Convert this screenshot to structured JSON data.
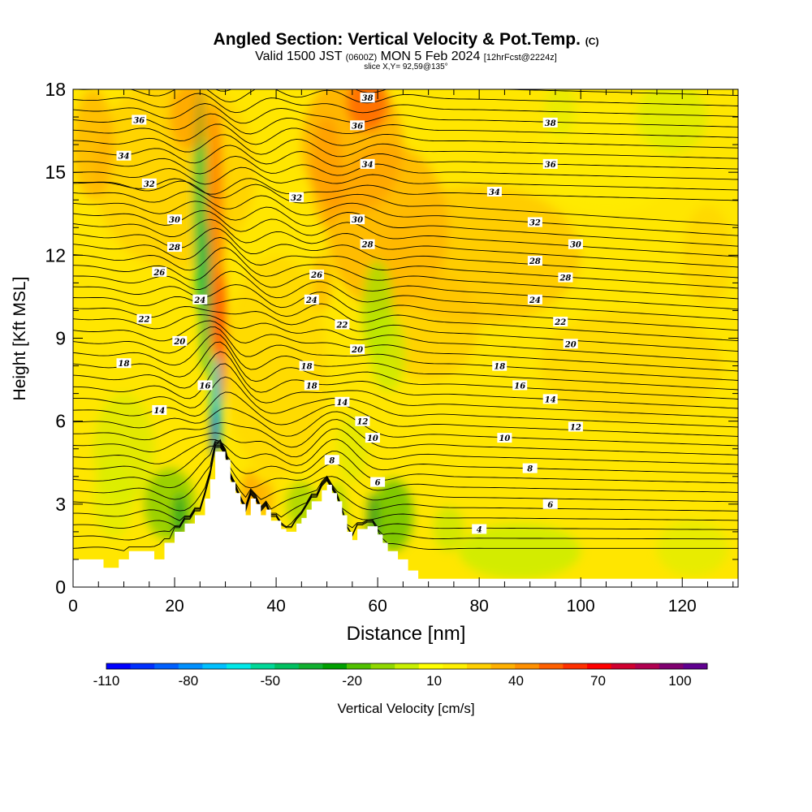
{
  "chart_data": {
    "type": "heatmap",
    "title": "Angled Section: Vertical Velocity & Pot.Temp.",
    "title_unit": "(C)",
    "subtitle_time": "Valid 1500 JST",
    "subtitle_zulu": "(0600Z)",
    "subtitle_date": "MON 5 Feb 2024",
    "subtitle_fcst": "[12hrFcst@2224z]",
    "slice": "slice X,Y= 92,59@135°",
    "xlabel": "Distance [nm]",
    "ylabel": "Height [Kft MSL]",
    "xlim": [
      0,
      131
    ],
    "ylim": [
      0,
      18
    ],
    "x_ticks": [
      "0",
      "20",
      "40",
      "60",
      "80",
      "100",
      "120"
    ],
    "y_ticks": [
      "0",
      "3",
      "6",
      "9",
      "12",
      "15",
      "18"
    ],
    "colorbar": {
      "label": "Vertical Velocity [cm/s]",
      "range": [
        -110,
        110
      ],
      "tick_labels": [
        "-110",
        "-80",
        "-50",
        "-20",
        "10",
        "40",
        "70",
        "100"
      ],
      "colors": [
        "#0000ff",
        "#0030ff",
        "#0060ff",
        "#0090ff",
        "#00c0ff",
        "#00e8e8",
        "#00d898",
        "#00c060",
        "#10b030",
        "#00a000",
        "#50c000",
        "#90d800",
        "#c8f000",
        "#ffff00",
        "#fff000",
        "#ffd000",
        "#ffb000",
        "#ff9000",
        "#ff6000",
        "#ff3000",
        "#ff0000",
        "#d00030",
        "#b00050",
        "#800070",
        "#600090"
      ]
    },
    "terrain_max_kft": 4.9,
    "contour_labels": [
      {
        "v": "36",
        "x": 13,
        "y": 16.9
      },
      {
        "v": "34",
        "x": 10,
        "y": 15.6
      },
      {
        "v": "32",
        "x": 15,
        "y": 14.6
      },
      {
        "v": "30",
        "x": 20,
        "y": 13.3
      },
      {
        "v": "28",
        "x": 20,
        "y": 12.3
      },
      {
        "v": "26",
        "x": 17,
        "y": 11.4
      },
      {
        "v": "24",
        "x": 25,
        "y": 10.4
      },
      {
        "v": "22",
        "x": 14,
        "y": 9.7
      },
      {
        "v": "20",
        "x": 21,
        "y": 8.9
      },
      {
        "v": "18",
        "x": 10,
        "y": 8.1
      },
      {
        "v": "16",
        "x": 26,
        "y": 7.3
      },
      {
        "v": "14",
        "x": 17,
        "y": 6.4
      },
      {
        "v": "38",
        "x": 58,
        "y": 17.7
      },
      {
        "v": "36",
        "x": 56,
        "y": 16.7
      },
      {
        "v": "34",
        "x": 58,
        "y": 15.3
      },
      {
        "v": "32",
        "x": 44,
        "y": 14.1
      },
      {
        "v": "30",
        "x": 56,
        "y": 13.3
      },
      {
        "v": "28",
        "x": 58,
        "y": 12.4
      },
      {
        "v": "26",
        "x": 48,
        "y": 11.3
      },
      {
        "v": "24",
        "x": 47,
        "y": 10.4
      },
      {
        "v": "22",
        "x": 53,
        "y": 9.5
      },
      {
        "v": "20",
        "x": 56,
        "y": 8.6
      },
      {
        "v": "18",
        "x": 46,
        "y": 8.0
      },
      {
        "v": "18",
        "x": 47,
        "y": 7.3
      },
      {
        "v": "14",
        "x": 53,
        "y": 6.7
      },
      {
        "v": "12",
        "x": 57,
        "y": 6.0
      },
      {
        "v": "10",
        "x": 59,
        "y": 5.4
      },
      {
        "v": "8",
        "x": 51,
        "y": 4.6
      },
      {
        "v": "6",
        "x": 60,
        "y": 3.8
      },
      {
        "v": "4",
        "x": 80,
        "y": 2.1
      },
      {
        "v": "38",
        "x": 94,
        "y": 16.8
      },
      {
        "v": "36",
        "x": 94,
        "y": 15.3
      },
      {
        "v": "34",
        "x": 83,
        "y": 14.3
      },
      {
        "v": "32",
        "x": 91,
        "y": 13.2
      },
      {
        "v": "30",
        "x": 99,
        "y": 12.4
      },
      {
        "v": "28",
        "x": 91,
        "y": 11.8
      },
      {
        "v": "28",
        "x": 97,
        "y": 11.2
      },
      {
        "v": "24",
        "x": 91,
        "y": 10.4
      },
      {
        "v": "22",
        "x": 96,
        "y": 9.6
      },
      {
        "v": "20",
        "x": 98,
        "y": 8.8
      },
      {
        "v": "18",
        "x": 84,
        "y": 8.0
      },
      {
        "v": "16",
        "x": 88,
        "y": 7.3
      },
      {
        "v": "14",
        "x": 94,
        "y": 6.8
      },
      {
        "v": "12",
        "x": 99,
        "y": 5.8
      },
      {
        "v": "10",
        "x": 85,
        "y": 5.4
      },
      {
        "v": "8",
        "x": 90,
        "y": 4.3
      },
      {
        "v": "6",
        "x": 94,
        "y": 3.0
      }
    ]
  }
}
